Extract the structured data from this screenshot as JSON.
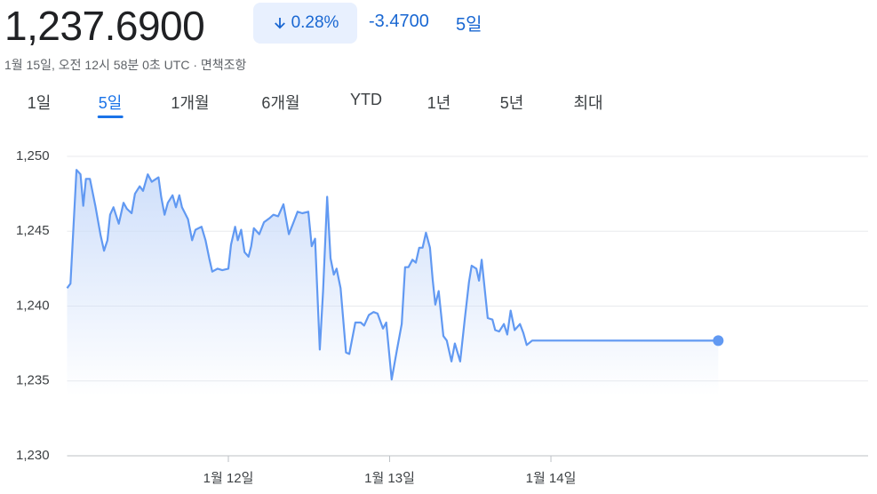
{
  "header": {
    "price": "1,237.6900",
    "change_percent": "0.28%",
    "change": "-3.4700",
    "period": "5일",
    "timestamp": "1월 15일, 오전 12시 58분 0초 UTC · 면책조항"
  },
  "tabs": [
    "1일",
    "5일",
    "1개월",
    "6개월",
    "YTD",
    "1년",
    "5년",
    "최대"
  ],
  "active_tab": 1,
  "chart_data": {
    "type": "line",
    "color": "#6199f2",
    "grid": true,
    "x": [
      0,
      0.5,
      1.4,
      2.0,
      2.4,
      2.8,
      3.4,
      4.2,
      5.0,
      5.5,
      6.0,
      6.4,
      6.9,
      7.7,
      8.4,
      8.9,
      9.6,
      10.1,
      10.8,
      11.3,
      12.0,
      12.6,
      13.6,
      14.0,
      14.5,
      15.0,
      15.7,
      16.2,
      16.7,
      17.1,
      18.0,
      18.6,
      19.1,
      20.0,
      20.6,
      21.2,
      21.6,
      22.4,
      23.1,
      24.0,
      24.4,
      25.0,
      25.4,
      25.9,
      26.4,
      27.0,
      27.4,
      27.8,
      28.6,
      29.3,
      30.2,
      30.7,
      31.4,
      32.2,
      33.0,
      33.7,
      34.3,
      35.0,
      35.9,
      36.4,
      36.9,
      37.6,
      38.1,
      38.7,
      39.2,
      39.7,
      40.1,
      40.7,
      41.5,
      42.0,
      42.9,
      43.7,
      44.2,
      44.9,
      45.6,
      46.2,
      47.0,
      47.5,
      48.3,
      49.1,
      49.8,
      50.3,
      50.8,
      51.4,
      51.9,
      52.4,
      52.9,
      53.4,
      54.0,
      54.4,
      54.8,
      55.3,
      56.0,
      56.5,
      57.2,
      57.7,
      58.5,
      59.2,
      59.8,
      60.2,
      60.9,
      61.3,
      61.7,
      62.6,
      63.3,
      63.7,
      64.3,
      65.0,
      65.5,
      66.0,
      66.6,
      67.4,
      67.9,
      68.4,
      69.2,
      72.0,
      96.9
    ],
    "values": [
      1241.2,
      1241.5,
      1249.1,
      1248.8,
      1246.7,
      1248.5,
      1248.5,
      1246.7,
      1244.7,
      1243.7,
      1244.4,
      1246.1,
      1246.6,
      1245.5,
      1246.9,
      1246.5,
      1246.2,
      1247.5,
      1248.0,
      1247.7,
      1248.8,
      1248.3,
      1248.6,
      1247.3,
      1246.1,
      1246.9,
      1247.4,
      1246.6,
      1247.4,
      1246.6,
      1245.8,
      1244.4,
      1245.1,
      1245.3,
      1244.4,
      1243.1,
      1242.3,
      1242.5,
      1242.4,
      1242.5,
      1244.1,
      1245.3,
      1244.4,
      1245.1,
      1243.6,
      1243.3,
      1244.0,
      1245.2,
      1244.8,
      1245.6,
      1245.9,
      1246.1,
      1246.0,
      1246.8,
      1244.8,
      1245.6,
      1246.3,
      1246.2,
      1246.3,
      1244.0,
      1244.5,
      1237.1,
      1241.0,
      1247.3,
      1243.2,
      1242.1,
      1242.5,
      1241.2,
      1236.9,
      1236.8,
      1238.9,
      1238.9,
      1238.7,
      1239.4,
      1239.6,
      1239.5,
      1238.5,
      1238.9,
      1235.1,
      1237.1,
      1238.8,
      1242.6,
      1242.6,
      1243.1,
      1242.9,
      1243.9,
      1243.9,
      1244.9,
      1243.9,
      1241.8,
      1240.1,
      1241.0,
      1238.0,
      1237.7,
      1236.3,
      1237.5,
      1236.3,
      1239.2,
      1241.6,
      1242.7,
      1242.5,
      1241.7,
      1243.1,
      1239.2,
      1239.1,
      1238.4,
      1238.3,
      1238.8,
      1238.1,
      1239.7,
      1238.4,
      1238.8,
      1238.2,
      1237.4,
      1237.7,
      1237.7,
      1237.69
    ],
    "xlim": [
      0,
      119.2
    ],
    "xticks": [
      {
        "value": 24,
        "label": "1월 12일"
      },
      {
        "value": 48,
        "label": "1월 13일"
      },
      {
        "value": 72,
        "label": "1월 14일"
      }
    ],
    "ylim": [
      1230,
      1250
    ],
    "yticks": [
      {
        "value": 1230,
        "label": "1,230"
      },
      {
        "value": 1235,
        "label": "1,235"
      },
      {
        "value": 1240,
        "label": "1,240"
      },
      {
        "value": 1245,
        "label": "1,245"
      },
      {
        "value": 1250,
        "label": "1,250"
      }
    ]
  }
}
